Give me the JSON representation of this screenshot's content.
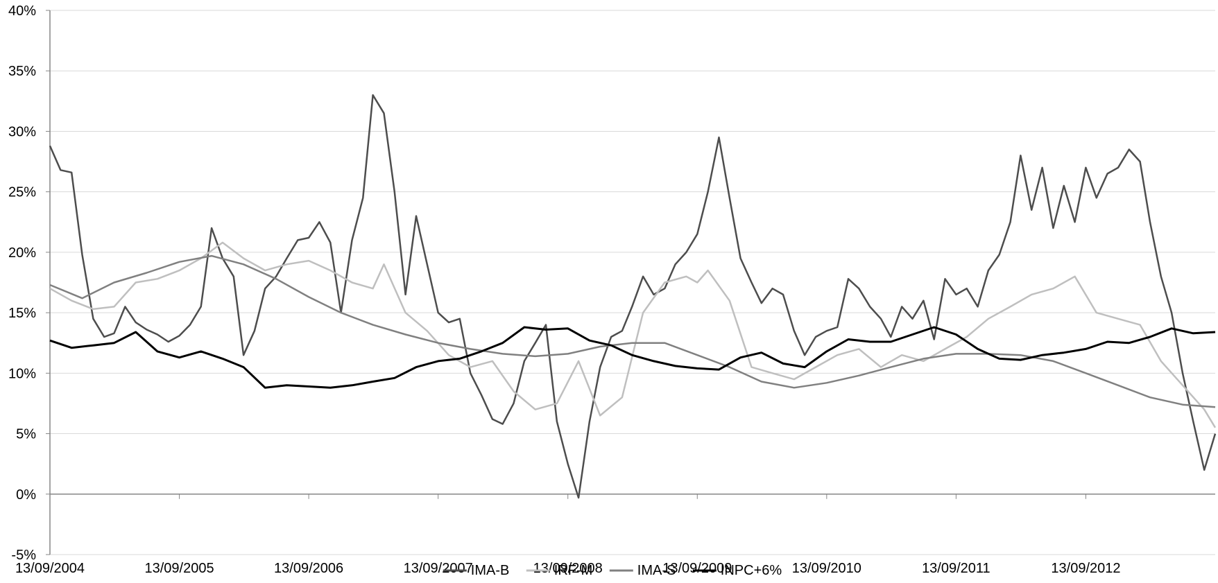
{
  "chart_data": {
    "type": "line",
    "title": "",
    "xlabel": "",
    "ylabel": "",
    "ylim": [
      -5,
      40
    ],
    "y_ticks": [
      -5,
      0,
      5,
      10,
      15,
      20,
      25,
      30,
      35,
      40
    ],
    "y_tick_labels": [
      "-5%",
      "0%",
      "5%",
      "10%",
      "15%",
      "20%",
      "25%",
      "30%",
      "35%",
      "40%"
    ],
    "x_range": [
      "2004-09-13",
      "2013-09-13"
    ],
    "x_ticks": [
      "2004-09-13",
      "2005-09-13",
      "2006-09-13",
      "2007-09-13",
      "2008-09-13",
      "2009-09-13",
      "2010-09-13",
      "2011-09-13",
      "2012-09-13"
    ],
    "x_tick_labels": [
      "13/09/2004",
      "13/09/2005",
      "13/09/2006",
      "13/09/2007",
      "13/09/2008",
      "13/09/2009",
      "13/09/2010",
      "13/09/2011",
      "13/09/2012"
    ],
    "grid": "horizontal",
    "legend": "bottom",
    "series": [
      {
        "name": "IMA-B",
        "color": "#4d4d4d",
        "x": [
          "2004-09-13",
          "2004-10-13",
          "2004-11-13",
          "2004-12-13",
          "2005-01-13",
          "2005-02-13",
          "2005-03-13",
          "2005-04-13",
          "2005-05-13",
          "2005-06-13",
          "2005-07-13",
          "2005-08-13",
          "2005-09-13",
          "2005-10-13",
          "2005-11-13",
          "2005-12-13",
          "2006-01-13",
          "2006-02-13",
          "2006-03-13",
          "2006-04-13",
          "2006-05-13",
          "2006-06-13",
          "2006-07-13",
          "2006-08-13",
          "2006-09-13",
          "2006-10-13",
          "2006-11-13",
          "2006-12-13",
          "2007-01-13",
          "2007-02-13",
          "2007-03-13",
          "2007-04-13",
          "2007-05-13",
          "2007-06-13",
          "2007-07-13",
          "2007-08-13",
          "2007-09-13",
          "2007-10-13",
          "2007-11-13",
          "2007-12-13",
          "2008-01-13",
          "2008-02-13",
          "2008-03-13",
          "2008-04-13",
          "2008-05-13",
          "2008-06-13",
          "2008-07-13",
          "2008-08-13",
          "2008-09-13",
          "2008-10-13",
          "2008-11-13",
          "2008-12-13",
          "2009-01-13",
          "2009-02-13",
          "2009-03-13",
          "2009-04-13",
          "2009-05-13",
          "2009-06-13",
          "2009-07-13",
          "2009-08-13",
          "2009-09-13",
          "2009-10-13",
          "2009-11-13",
          "2009-12-13",
          "2010-01-13",
          "2010-02-13",
          "2010-03-13",
          "2010-04-13",
          "2010-05-13",
          "2010-06-13",
          "2010-07-13",
          "2010-08-13",
          "2010-09-13",
          "2010-10-13",
          "2010-11-13",
          "2010-12-13",
          "2011-01-13",
          "2011-02-13",
          "2011-03-13",
          "2011-04-13",
          "2011-05-13",
          "2011-06-13",
          "2011-07-13",
          "2011-08-13",
          "2011-09-13",
          "2011-10-13",
          "2011-11-13",
          "2011-12-13",
          "2012-01-13",
          "2012-02-13",
          "2012-03-13",
          "2012-04-13",
          "2012-05-13",
          "2012-06-13",
          "2012-07-13",
          "2012-08-13",
          "2012-09-13",
          "2012-10-13",
          "2012-11-13",
          "2012-12-13",
          "2013-01-13",
          "2013-02-13",
          "2013-03-13",
          "2013-04-13",
          "2013-05-13",
          "2013-06-13",
          "2013-07-13",
          "2013-08-13",
          "2013-09-13"
        ],
        "values": [
          28.8,
          26.8,
          26.6,
          19.8,
          14.5,
          13.0,
          13.3,
          15.5,
          14.2,
          13.6,
          13.2,
          12.6,
          13.1,
          14.0,
          15.5,
          22.0,
          19.5,
          18.0,
          11.5,
          13.5,
          17.0,
          18.0,
          19.5,
          21.0,
          21.2,
          22.5,
          20.8,
          15.0,
          21.0,
          24.5,
          33.0,
          31.5,
          25.0,
          16.5,
          23.0,
          19.0,
          15.0,
          14.2,
          14.5,
          10.0,
          8.2,
          6.2,
          5.8,
          7.5,
          11.0,
          12.5,
          14.0,
          6.0,
          2.5,
          -0.3,
          6.0,
          10.5,
          13.0,
          13.5,
          15.5,
          18.0,
          16.5,
          17.0,
          19.0,
          20.0,
          21.5,
          25.0,
          29.5,
          24.5,
          19.5,
          17.5,
          15.8,
          17.0,
          16.5,
          13.5,
          11.5,
          13.0,
          13.5,
          13.8,
          17.8,
          17.0,
          15.5,
          14.5,
          13.0,
          15.5,
          14.5,
          16.0,
          12.8,
          17.8,
          16.5,
          17.0,
          15.5,
          18.5,
          19.8,
          22.5,
          28.0,
          23.5,
          27.0,
          22.0,
          25.5,
          22.5,
          27.0,
          24.5,
          26.5,
          27.0,
          28.5,
          27.5,
          22.5,
          18.0,
          15.0,
          10.0,
          6.0,
          2.0,
          5.0
        ]
      },
      {
        "name": "IRF-M",
        "color": "#bfbfbf",
        "x": [
          "2004-09-13",
          "2004-11-13",
          "2005-01-13",
          "2005-03-13",
          "2005-05-13",
          "2005-07-13",
          "2005-09-13",
          "2005-11-13",
          "2006-01-13",
          "2006-03-13",
          "2006-05-13",
          "2006-07-13",
          "2006-09-13",
          "2006-11-13",
          "2007-01-13",
          "2007-03-13",
          "2007-04-13",
          "2007-06-13",
          "2007-08-13",
          "2007-10-13",
          "2007-12-13",
          "2008-02-13",
          "2008-04-13",
          "2008-06-13",
          "2008-08-13",
          "2008-10-13",
          "2008-12-13",
          "2009-02-13",
          "2009-04-13",
          "2009-06-13",
          "2009-08-13",
          "2009-09-13",
          "2009-10-13",
          "2009-12-13",
          "2010-02-13",
          "2010-04-13",
          "2010-06-13",
          "2010-08-13",
          "2010-10-13",
          "2010-12-13",
          "2011-02-13",
          "2011-04-13",
          "2011-06-13",
          "2011-08-13",
          "2011-10-13",
          "2011-12-13",
          "2012-02-13",
          "2012-04-13",
          "2012-06-13",
          "2012-08-13",
          "2012-10-13",
          "2012-12-13",
          "2013-02-13",
          "2013-04-13",
          "2013-06-13",
          "2013-08-13",
          "2013-09-13"
        ],
        "values": [
          17.0,
          16.0,
          15.3,
          15.5,
          17.5,
          17.8,
          18.5,
          19.5,
          20.8,
          19.5,
          18.5,
          19.0,
          19.3,
          18.5,
          17.5,
          17.0,
          19.0,
          15.0,
          13.5,
          11.5,
          10.5,
          11.0,
          8.5,
          7.0,
          7.5,
          11.0,
          6.5,
          8.0,
          15.0,
          17.5,
          18.0,
          17.5,
          18.5,
          16.0,
          10.5,
          10.0,
          9.5,
          10.5,
          11.5,
          12.0,
          10.5,
          11.5,
          11.0,
          12.0,
          13.0,
          14.5,
          15.5,
          16.5,
          17.0,
          18.0,
          15.0,
          14.5,
          14.0,
          11.0,
          9.0,
          7.0,
          5.5
        ]
      },
      {
        "name": "IMA-S",
        "color": "#808080",
        "x": [
          "2004-09-13",
          "2004-12-13",
          "2005-03-13",
          "2005-06-13",
          "2005-09-13",
          "2005-12-13",
          "2006-03-13",
          "2006-06-13",
          "2006-09-13",
          "2006-12-13",
          "2007-03-13",
          "2007-06-13",
          "2007-09-13",
          "2007-12-13",
          "2008-03-13",
          "2008-06-13",
          "2008-09-13",
          "2008-12-13",
          "2009-03-13",
          "2009-06-13",
          "2009-09-13",
          "2009-12-13",
          "2010-03-13",
          "2010-06-13",
          "2010-09-13",
          "2010-12-13",
          "2011-03-13",
          "2011-06-13",
          "2011-09-13",
          "2011-12-13",
          "2012-03-13",
          "2012-06-13",
          "2012-09-13",
          "2012-12-13",
          "2013-03-13",
          "2013-06-13",
          "2013-09-13"
        ],
        "values": [
          17.3,
          16.2,
          17.5,
          18.3,
          19.2,
          19.7,
          19.0,
          17.8,
          16.3,
          15.0,
          14.0,
          13.2,
          12.5,
          12.0,
          11.6,
          11.4,
          11.6,
          12.2,
          12.5,
          12.5,
          11.5,
          10.5,
          9.3,
          8.8,
          9.2,
          9.8,
          10.5,
          11.2,
          11.6,
          11.6,
          11.5,
          11.0,
          10.0,
          9.0,
          8.0,
          7.4,
          7.2
        ]
      },
      {
        "name": "INPC+6%",
        "color": "#000000",
        "x": [
          "2004-09-13",
          "2004-11-13",
          "2005-01-13",
          "2005-03-13",
          "2005-05-13",
          "2005-07-13",
          "2005-09-13",
          "2005-11-13",
          "2006-01-13",
          "2006-03-13",
          "2006-05-13",
          "2006-07-13",
          "2006-09-13",
          "2006-11-13",
          "2007-01-13",
          "2007-03-13",
          "2007-05-13",
          "2007-07-13",
          "2007-09-13",
          "2007-11-13",
          "2008-01-13",
          "2008-03-13",
          "2008-05-13",
          "2008-07-13",
          "2008-09-13",
          "2008-11-13",
          "2009-01-13",
          "2009-03-13",
          "2009-05-13",
          "2009-07-13",
          "2009-09-13",
          "2009-11-13",
          "2010-01-13",
          "2010-03-13",
          "2010-05-13",
          "2010-07-13",
          "2010-09-13",
          "2010-11-13",
          "2011-01-13",
          "2011-03-13",
          "2011-05-13",
          "2011-07-13",
          "2011-09-13",
          "2011-11-13",
          "2012-01-13",
          "2012-03-13",
          "2012-05-13",
          "2012-07-13",
          "2012-09-13",
          "2012-11-13",
          "2013-01-13",
          "2013-03-13",
          "2013-05-13",
          "2013-07-13",
          "2013-09-13"
        ],
        "values": [
          12.7,
          12.1,
          12.3,
          12.5,
          13.4,
          11.8,
          11.3,
          11.8,
          11.2,
          10.5,
          8.8,
          9.0,
          8.9,
          8.8,
          9.0,
          9.3,
          9.6,
          10.5,
          11.0,
          11.2,
          11.8,
          12.5,
          13.8,
          13.6,
          13.7,
          12.7,
          12.3,
          11.5,
          11.0,
          10.6,
          10.4,
          10.3,
          11.3,
          11.7,
          10.8,
          10.5,
          11.8,
          12.8,
          12.6,
          12.6,
          13.2,
          13.8,
          13.2,
          12.0,
          11.2,
          11.1,
          11.5,
          11.7,
          12.0,
          12.6,
          12.5,
          13.0,
          13.7,
          13.3,
          13.4
        ]
      }
    ]
  }
}
